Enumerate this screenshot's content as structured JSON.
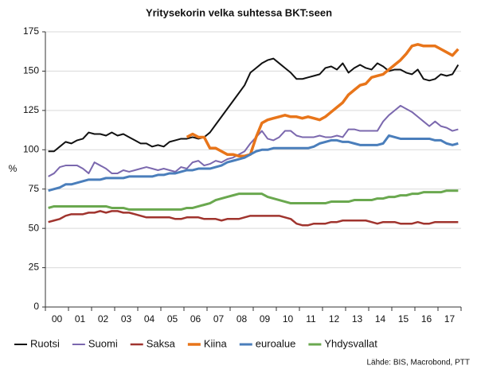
{
  "chart_data": {
    "type": "line",
    "title": "Yritysekorin velka suhtessa BKT:seen",
    "y_label": "%",
    "source": "Lähde: BIS, Macrobond, PTT",
    "categories": [
      null,
      "00",
      null,
      null,
      null,
      "01",
      null,
      null,
      null,
      "02",
      null,
      null,
      null,
      "03",
      null,
      null,
      null,
      "04",
      null,
      null,
      null,
      "05",
      null,
      null,
      null,
      "06",
      null,
      null,
      null,
      "07",
      null,
      null,
      null,
      "08",
      null,
      null,
      null,
      "09",
      null,
      null,
      null,
      "10",
      null,
      null,
      null,
      "11",
      null,
      null,
      null,
      "12",
      null,
      null,
      null,
      "13",
      null,
      null,
      null,
      "14",
      null,
      null,
      null,
      "15",
      null,
      null,
      null,
      "16",
      null,
      null,
      null,
      "17",
      null,
      null
    ],
    "ylim": [
      0,
      175
    ],
    "yticks": [
      0,
      25,
      50,
      75,
      100,
      125,
      150,
      175
    ],
    "grid": true,
    "legend": "bottom",
    "series": [
      {
        "name": "Ruotsi",
        "color": "#111111",
        "line_width": 2,
        "values": [
          99,
          99,
          102,
          105,
          104,
          106,
          107,
          111,
          110,
          110,
          109,
          111,
          109,
          110,
          108,
          106,
          104,
          104,
          102,
          103,
          102,
          105,
          106,
          107,
          107,
          108,
          107,
          108,
          111,
          116,
          121,
          126,
          131,
          136,
          141,
          149,
          152,
          155,
          157,
          158,
          155,
          152,
          149,
          145,
          145,
          146,
          147,
          148,
          152,
          153,
          151,
          155,
          149,
          152,
          154,
          152,
          151,
          155,
          153,
          150,
          151,
          151,
          149,
          148,
          151,
          145,
          144,
          145,
          148,
          147,
          148,
          154
        ]
      },
      {
        "name": "Suomi",
        "color": "#7b68ae",
        "line_width": 2,
        "values": [
          83,
          85,
          89,
          90,
          90,
          90,
          88,
          85,
          92,
          90,
          88,
          85,
          85,
          87,
          86,
          87,
          88,
          89,
          88,
          87,
          88,
          87,
          86,
          89,
          88,
          92,
          93,
          90,
          91,
          93,
          92,
          94,
          95,
          97,
          99,
          104,
          108,
          112,
          107,
          106,
          108,
          112,
          112,
          109,
          108,
          108,
          108,
          109,
          108,
          108,
          109,
          108,
          113,
          113,
          112,
          112,
          112,
          112,
          118,
          122,
          125,
          128,
          126,
          124,
          121,
          118,
          115,
          118,
          115,
          114,
          112,
          113
        ]
      },
      {
        "name": "Saksa",
        "color": "#a0342e",
        "line_width": 2.5,
        "values": [
          54,
          55,
          56,
          58,
          59,
          59,
          59,
          60,
          60,
          61,
          60,
          61,
          61,
          60,
          60,
          59,
          58,
          57,
          57,
          57,
          57,
          57,
          56,
          56,
          57,
          57,
          57,
          56,
          56,
          56,
          55,
          56,
          56,
          56,
          57,
          58,
          58,
          58,
          58,
          58,
          58,
          57,
          56,
          53,
          52,
          52,
          53,
          53,
          53,
          54,
          54,
          55,
          55,
          55,
          55,
          55,
          54,
          53,
          54,
          54,
          54,
          53,
          53,
          53,
          54,
          53,
          53,
          54,
          54,
          54,
          54,
          54
        ]
      },
      {
        "name": "Kiina",
        "color": "#e8751a",
        "line_width": 3.5,
        "values": [
          null,
          null,
          null,
          null,
          null,
          null,
          null,
          null,
          null,
          null,
          null,
          null,
          null,
          null,
          null,
          null,
          null,
          null,
          null,
          null,
          null,
          null,
          null,
          null,
          108,
          110,
          108,
          108,
          101,
          101,
          99,
          97,
          97,
          96,
          96,
          97,
          108,
          117,
          119,
          120,
          121,
          122,
          121,
          121,
          120,
          121,
          120,
          119,
          121,
          124,
          127,
          130,
          135,
          138,
          141,
          142,
          146,
          147,
          148,
          151,
          154,
          157,
          161,
          166,
          167,
          166,
          166,
          166,
          164,
          162,
          160,
          164
        ]
      },
      {
        "name": "euroalue",
        "color": "#4a7ebb",
        "line_width": 3,
        "values": [
          74,
          75,
          76,
          78,
          78,
          79,
          80,
          81,
          81,
          81,
          82,
          82,
          82,
          82,
          83,
          83,
          83,
          83,
          83,
          84,
          84,
          85,
          85,
          86,
          87,
          87,
          88,
          88,
          88,
          89,
          90,
          92,
          93,
          94,
          95,
          97,
          99,
          100,
          100,
          101,
          101,
          101,
          101,
          101,
          101,
          101,
          102,
          104,
          105,
          106,
          106,
          105,
          105,
          104,
          103,
          103,
          103,
          103,
          104,
          109,
          108,
          107,
          107,
          107,
          107,
          107,
          107,
          106,
          106,
          104,
          103,
          104
        ]
      },
      {
        "name": "Yhdysvallat",
        "color": "#6aa84f",
        "line_width": 3,
        "values": [
          63,
          64,
          64,
          64,
          64,
          64,
          64,
          64,
          64,
          64,
          64,
          63,
          63,
          63,
          62,
          62,
          62,
          62,
          62,
          62,
          62,
          62,
          62,
          62,
          63,
          63,
          64,
          65,
          66,
          68,
          69,
          70,
          71,
          72,
          72,
          72,
          72,
          72,
          70,
          69,
          68,
          67,
          66,
          66,
          66,
          66,
          66,
          66,
          66,
          67,
          67,
          67,
          67,
          68,
          68,
          68,
          68,
          69,
          69,
          70,
          70,
          71,
          71,
          72,
          72,
          73,
          73,
          73,
          73,
          74,
          74,
          74
        ]
      }
    ]
  }
}
